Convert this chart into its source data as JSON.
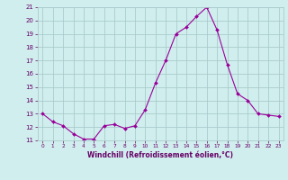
{
  "x": [
    0,
    1,
    2,
    3,
    4,
    5,
    6,
    7,
    8,
    9,
    10,
    11,
    12,
    13,
    14,
    15,
    16,
    17,
    18,
    19,
    20,
    21,
    22,
    23
  ],
  "y": [
    13.0,
    12.4,
    12.1,
    11.5,
    11.1,
    11.1,
    12.1,
    12.2,
    11.9,
    12.1,
    13.3,
    15.3,
    17.0,
    19.0,
    19.5,
    20.3,
    21.0,
    19.3,
    16.7,
    14.5,
    14.0,
    13.0,
    12.9,
    12.8
  ],
  "line_color": "#990099",
  "marker_color": "#990099",
  "bg_color": "#d0eeee",
  "grid_color": "#aacccc",
  "xlabel": "Windchill (Refroidissement éolien,°C)",
  "xlabel_color": "#660066",
  "tick_color": "#660066",
  "ylim": [
    11,
    21
  ],
  "xlim": [
    -0.5,
    23.5
  ],
  "yticks": [
    11,
    12,
    13,
    14,
    15,
    16,
    17,
    18,
    19,
    20,
    21
  ],
  "xticks": [
    0,
    1,
    2,
    3,
    4,
    5,
    6,
    7,
    8,
    9,
    10,
    11,
    12,
    13,
    14,
    15,
    16,
    17,
    18,
    19,
    20,
    21,
    22,
    23
  ]
}
